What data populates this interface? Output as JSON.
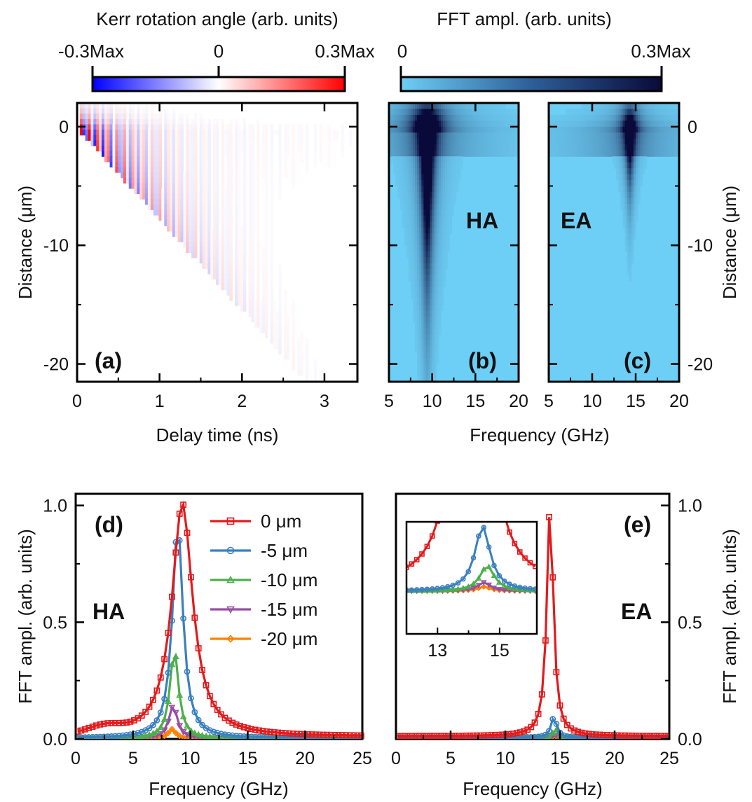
{
  "colorbars": {
    "kerr": {
      "title": "Kerr rotation angle (arb. units)",
      "ticks": [
        "-0.3Max",
        "0",
        "0.3Max"
      ],
      "colors": [
        "#0000ff",
        "#ffffff",
        "#ff0000"
      ]
    },
    "fft": {
      "title": "FFT ampl. (arb. units)",
      "ticks": [
        "0",
        "0.3Max"
      ],
      "colors": [
        "#6ecff6",
        "#0a0a3a"
      ]
    }
  },
  "chart_data": [
    {
      "panel": "a",
      "label": "(a)",
      "type": "heatmap",
      "xlabel": "Delay time (ns)",
      "ylabel": "Distance (μm)",
      "xlim": [
        0,
        3.4
      ],
      "ylim": [
        -21.5,
        2
      ],
      "xticks": [
        0,
        1,
        2,
        3
      ],
      "yticks": [
        0,
        -10,
        -20
      ],
      "xtick_labels": [
        "0",
        "1",
        "2",
        "3"
      ],
      "ytick_labels": [
        "0",
        "-10",
        "-20"
      ]
    },
    {
      "panel": "b",
      "label": "(b)",
      "annotation": "HA",
      "type": "heatmap",
      "xlabel": "Frequency (GHz)",
      "xlim": [
        5,
        20
      ],
      "ylim": [
        -21.5,
        2
      ],
      "xticks": [
        5,
        10,
        15,
        20
      ],
      "xtick_labels": [
        "5",
        "10",
        "15",
        "20"
      ],
      "peak_frequency": 9.3
    },
    {
      "panel": "c",
      "label": "(c)",
      "annotation": "EA",
      "type": "heatmap",
      "xlabel": "Frequency (GHz)",
      "ylabel": "Distance (μm)",
      "xlim": [
        5,
        20
      ],
      "ylim": [
        -21.5,
        2
      ],
      "xticks": [
        5,
        10,
        15,
        20
      ],
      "xtick_labels": [
        "5",
        "10",
        "15",
        "20"
      ],
      "yticks": [
        0,
        -10,
        -20
      ],
      "ytick_labels": [
        "0",
        "-10",
        "-20"
      ],
      "peak_frequency": 14.2
    },
    {
      "panel": "d",
      "label": "(d)",
      "annotation": "HA",
      "type": "line",
      "xlabel": "Frequency (GHz)",
      "ylabel": "FFT ampl. (arb. units)",
      "xlim": [
        0,
        25
      ],
      "ylim": [
        0,
        1.05
      ],
      "xticks": [
        0,
        5,
        10,
        15,
        20,
        25
      ],
      "xtick_labels": [
        "0",
        "5",
        "10",
        "15",
        "20",
        "25"
      ],
      "yticks": [
        0,
        0.5,
        1.0
      ],
      "ytick_labels": [
        "0.0",
        "0.5",
        "1.0"
      ],
      "legend": "top-right",
      "series": [
        {
          "name": "0 μm",
          "color": "#e31a1c",
          "marker": "square",
          "center": 9.3,
          "peak": 1.0,
          "width": 1.1,
          "base": 0.01
        },
        {
          "name": "-5 μm",
          "color": "#3a7fc1",
          "marker": "circle",
          "center": 8.9,
          "peak": 0.92,
          "width": 0.55,
          "base": 0.003
        },
        {
          "name": "-10 μm",
          "color": "#4daf4a",
          "marker": "triangle-up",
          "center": 8.6,
          "peak": 0.38,
          "width": 0.45,
          "base": 0.002
        },
        {
          "name": "-15 μm",
          "color": "#984ea3",
          "marker": "triangle-down",
          "center": 8.5,
          "peak": 0.14,
          "width": 0.45,
          "base": 0.002
        },
        {
          "name": "-20 μm",
          "color": "#ff7f00",
          "marker": "diamond",
          "center": 8.4,
          "peak": 0.04,
          "width": 0.4,
          "base": 0.002
        }
      ]
    },
    {
      "panel": "e",
      "label": "(e)",
      "annotation": "EA",
      "type": "line",
      "xlabel": "Frequency (GHz)",
      "ylabel": "FFT ampl. (arb. units)",
      "xlim": [
        0,
        25
      ],
      "ylim": [
        0,
        1.05
      ],
      "xticks": [
        0,
        5,
        10,
        15,
        20,
        25
      ],
      "xtick_labels": [
        "0",
        "5",
        "10",
        "15",
        "20",
        "25"
      ],
      "yticks": [
        0,
        0.5,
        1.0
      ],
      "ytick_labels": [
        "0.0",
        "0.5",
        "1.0"
      ],
      "series": [
        {
          "name": "0 μm",
          "color": "#e31a1c",
          "marker": "square",
          "center": 14.1,
          "peak": 1.0,
          "width": 0.35,
          "base": 0.012
        },
        {
          "name": "-5 μm",
          "color": "#3a7fc1",
          "marker": "circle",
          "center": 14.45,
          "peak": 0.09,
          "width": 0.3,
          "base": 0.006
        },
        {
          "name": "-10 μm",
          "color": "#4daf4a",
          "marker": "triangle-up",
          "center": 14.6,
          "peak": 0.035,
          "width": 0.28,
          "base": 0.006
        },
        {
          "name": "-15 μm",
          "color": "#984ea3",
          "marker": "triangle-down",
          "center": 14.5,
          "peak": 0.012,
          "width": 0.25,
          "base": 0.006
        },
        {
          "name": "-20 μm",
          "color": "#ff7f00",
          "marker": "diamond",
          "center": 14.5,
          "peak": 0.006,
          "width": 0.25,
          "base": 0.006
        }
      ],
      "inset": {
        "xlim": [
          12.0,
          16.2
        ],
        "ylim": [
          0,
          0.145
        ],
        "xticks": [
          13,
          15
        ],
        "xtick_labels": [
          "13",
          "15"
        ]
      }
    }
  ]
}
